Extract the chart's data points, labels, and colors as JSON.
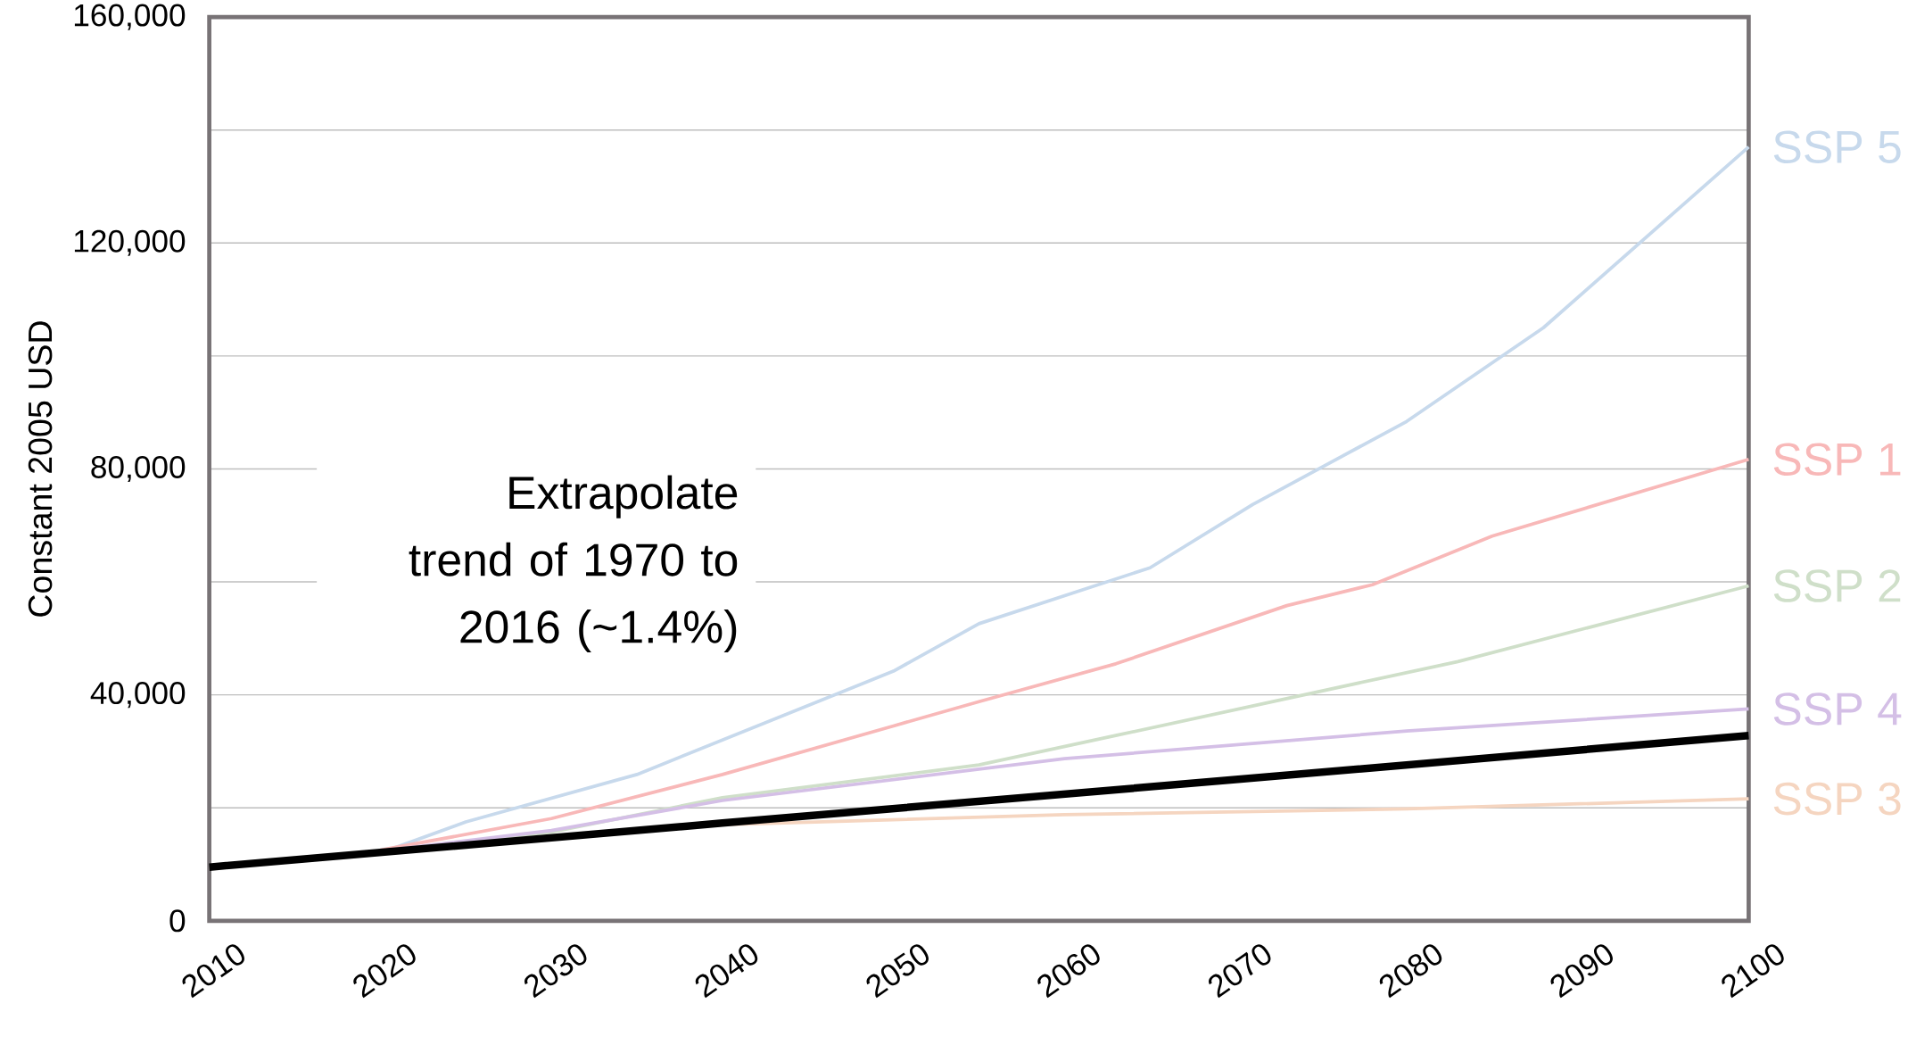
{
  "chart_data": {
    "type": "line",
    "ylabel": "Constant 2005 USD",
    "xlim": [
      2010,
      2100
    ],
    "xticks": [
      2010,
      2020,
      2030,
      2040,
      2050,
      2060,
      2070,
      2080,
      2090,
      2100
    ],
    "ylim": [
      0,
      160000
    ],
    "yticks": [
      0,
      {
        "value": 20000,
        "label": null
      },
      {
        "value": 40000,
        "label": "40,000"
      },
      {
        "value": 60000,
        "label": null
      },
      {
        "value": 80000,
        "label": "80,000"
      },
      {
        "value": 100000,
        "label": null
      },
      {
        "value": 120000,
        "label": "120,000"
      },
      {
        "value": 140000,
        "label": null
      },
      {
        "value": 160000,
        "label": "160,000"
      }
    ],
    "grid": "y",
    "legend": false,
    "series": [
      {
        "name": "SSP 5",
        "color": "#c7d9ec",
        "x": [
          2020,
          2025,
          2035,
          2050,
          2055,
          2065,
          2071,
          2080,
          2088,
          2100
        ],
        "values": [
          12000,
          17500,
          25900,
          44200,
          52600,
          62500,
          73700,
          88400,
          105000,
          137000
        ]
      },
      {
        "name": "SSP 1",
        "color": "#f8b8b8",
        "x": [
          2020,
          2030,
          2040,
          2050,
          2055,
          2063,
          2073,
          2078,
          2085,
          2100
        ],
        "values": [
          12500,
          18100,
          25900,
          34500,
          38800,
          45500,
          55800,
          59500,
          68100,
          81700
        ]
      },
      {
        "name": "SSP 2",
        "color": "#cfdfc9",
        "x": [
          2020,
          2030,
          2040,
          2055,
          2063,
          2083,
          2100
        ],
        "values": [
          12300,
          15700,
          21800,
          27600,
          32800,
          45900,
          59300
        ]
      },
      {
        "name": "SSP 4",
        "color": "#d4bfe6",
        "x": [
          2020,
          2030,
          2040,
          2060,
          2080,
          2100
        ],
        "values": [
          12300,
          16000,
          21300,
          28700,
          33600,
          37500
        ]
      },
      {
        "name": "SSP 3",
        "color": "#f5d5c0",
        "x": [
          2030,
          2040,
          2060,
          2080,
          2100
        ],
        "values": [
          14700,
          17000,
          18800,
          19800,
          21600
        ]
      },
      {
        "color": "#000000",
        "x": [
          2010,
          2040,
          2070,
          2100
        ],
        "values": [
          9500,
          17300,
          25000,
          32800
        ]
      }
    ],
    "annotations": [
      "Extrapolate trend of 1970 to 2016 (~1.4%)"
    ]
  }
}
